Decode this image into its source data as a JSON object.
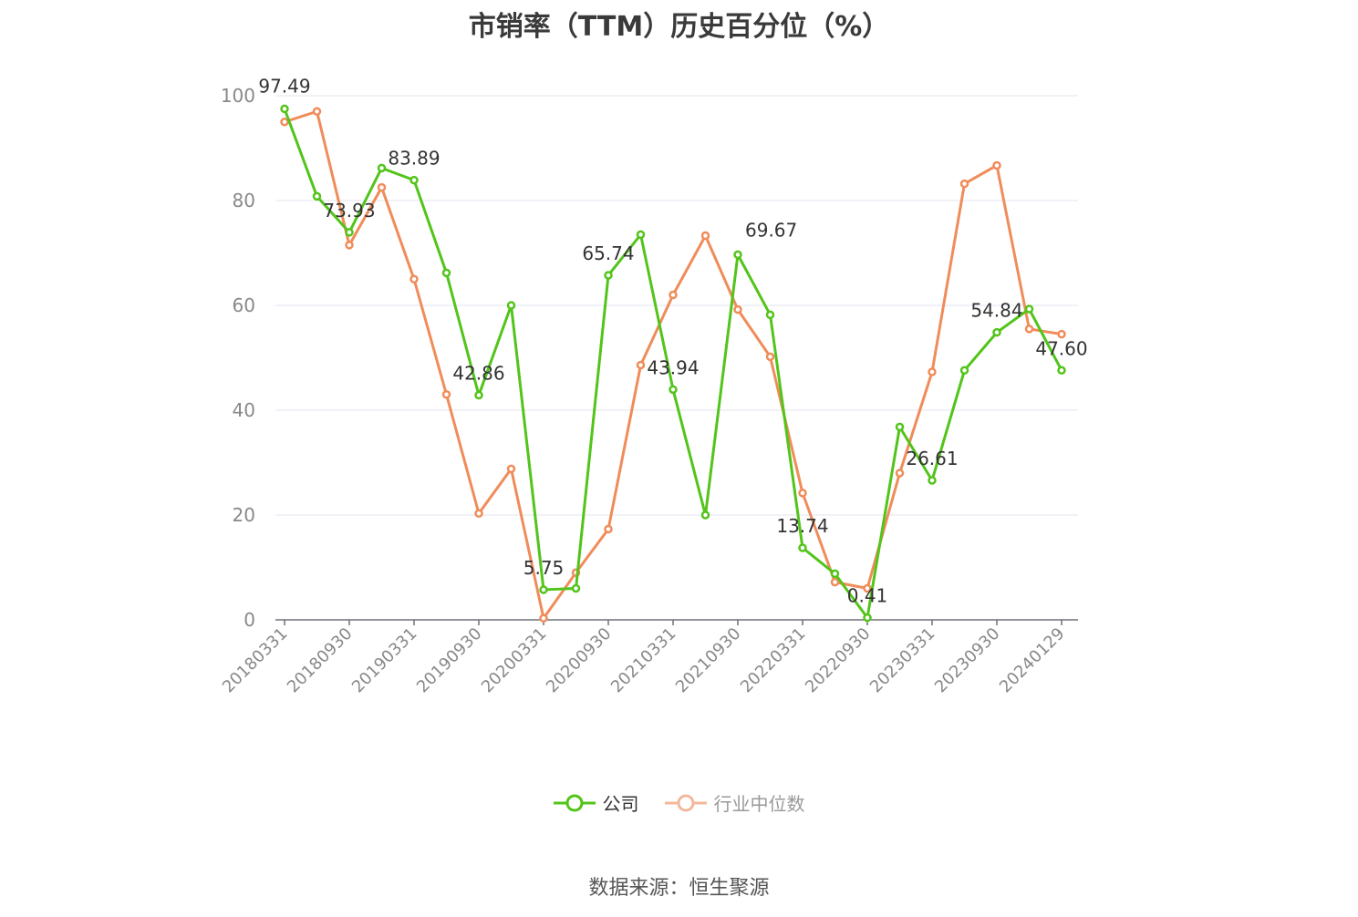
{
  "chart_data": {
    "type": "line",
    "title": "市销率（TTM）历史百分位（%）",
    "xlabel": "",
    "ylabel": "",
    "ylim": [
      0,
      100
    ],
    "yticks": [
      0,
      20,
      40,
      60,
      80,
      100
    ],
    "grid": true,
    "legend_position": "bottom",
    "x": [
      "20180331",
      "20180630",
      "20180930",
      "20181231",
      "20190331",
      "20190630",
      "20190930",
      "20191231",
      "20200331",
      "20200630",
      "20200930",
      "20201231",
      "20210331",
      "20210630",
      "20210930",
      "20211231",
      "20220331",
      "20220630",
      "20220930",
      "20221231",
      "20230331",
      "20230630",
      "20230930",
      "20231231",
      "20240129"
    ],
    "xtick_labels": [
      "20180331",
      "20180930",
      "20190331",
      "20190930",
      "20200331",
      "20200930",
      "20210331",
      "20210930",
      "20220331",
      "20220930",
      "20230331",
      "20230930",
      "20240129"
    ],
    "series": [
      {
        "name": "公司",
        "color": "#52c41a",
        "values": [
          97.49,
          80.8,
          73.93,
          86.2,
          83.89,
          66.2,
          42.86,
          60.0,
          5.75,
          6.0,
          65.74,
          73.5,
          43.94,
          20.0,
          69.67,
          58.2,
          13.74,
          8.8,
          0.41,
          36.8,
          26.61,
          47.6,
          54.84,
          59.3,
          47.6
        ],
        "labels": {
          "0": "97.49",
          "2": "73.93",
          "4": "83.89",
          "6": "42.86",
          "8": "5.75",
          "10": "65.74",
          "12": "43.94",
          "14": "69.67",
          "16": "13.74",
          "18": "0.41",
          "20": "26.61",
          "22": "54.84",
          "24": "47.60"
        }
      },
      {
        "name": "行业中位数",
        "color": "#f08c5a",
        "values": [
          95.0,
          97.0,
          71.5,
          82.5,
          65.0,
          43.0,
          20.3,
          28.8,
          0.3,
          9.0,
          17.3,
          48.6,
          62.0,
          73.3,
          59.2,
          50.2,
          24.2,
          7.2,
          6.0,
          28.0,
          47.3,
          83.2,
          86.7,
          55.5,
          54.5
        ]
      }
    ]
  },
  "legend": {
    "items": [
      {
        "label": "公司",
        "color": "#52c41a"
      },
      {
        "label": "行业中位数",
        "color": "#f3b89b"
      }
    ]
  },
  "source": "数据来源：恒生聚源"
}
